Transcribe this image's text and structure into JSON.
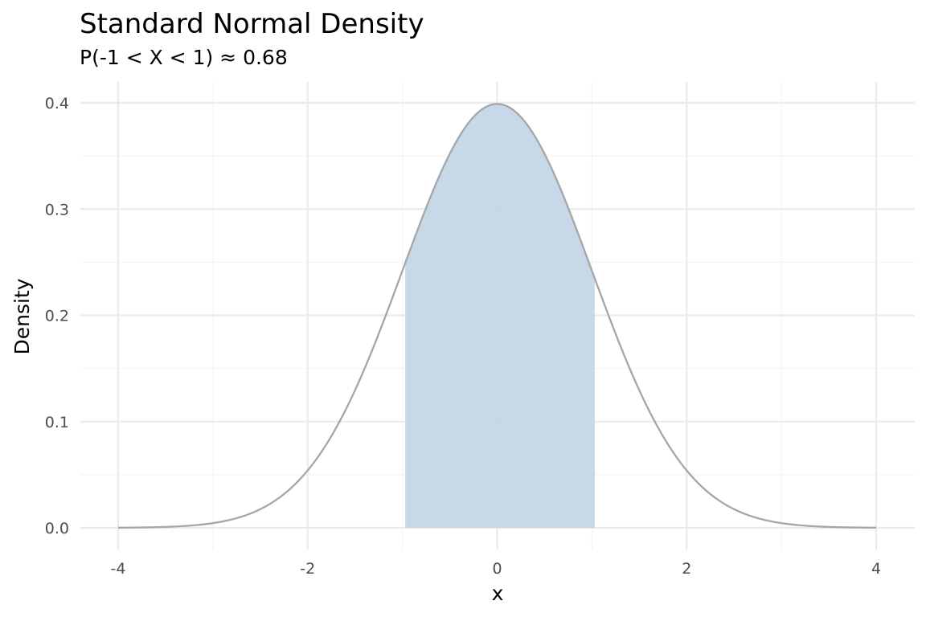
{
  "chart_data": {
    "type": "area",
    "title": "Standard Normal Density",
    "subtitle": "P(-1 < X < 1) ≈ 0.68",
    "xlabel": "x",
    "ylabel": "Density",
    "xlim": [
      -4,
      4
    ],
    "ylim": [
      0,
      0.4
    ],
    "x_ticks": [
      -4,
      -2,
      0,
      2,
      4
    ],
    "x_tick_labels": [
      "-4",
      "-2",
      "0",
      "2",
      "4"
    ],
    "y_ticks": [
      0.0,
      0.1,
      0.2,
      0.3,
      0.4
    ],
    "y_tick_labels": [
      "0.0",
      "0.1",
      "0.2",
      "0.3",
      "0.4"
    ],
    "x_minor": [
      -3,
      -1,
      1,
      3
    ],
    "y_minor": [
      0.05,
      0.15,
      0.25,
      0.35
    ],
    "grid": true,
    "shaded_region": [
      -0.97,
      1.03
    ],
    "curve": {
      "x": [
        -4.0,
        -3.5,
        -3.0,
        -2.5,
        -2.0,
        -1.5,
        -1.0,
        -0.97,
        -0.5,
        0.0,
        0.5,
        1.0,
        1.03,
        1.5,
        2.0,
        2.5,
        3.0,
        3.5,
        4.0
      ],
      "y": [
        0.0001,
        0.0009,
        0.0044,
        0.0175,
        0.054,
        0.1295,
        0.242,
        0.2492,
        0.3521,
        0.3989,
        0.3521,
        0.242,
        0.2347,
        0.1295,
        0.054,
        0.0175,
        0.0044,
        0.0009,
        0.0001
      ]
    },
    "colors": {
      "curve": "#a6a6a6",
      "fill": "#bfd3e6",
      "grid": "#ebebeb"
    }
  }
}
